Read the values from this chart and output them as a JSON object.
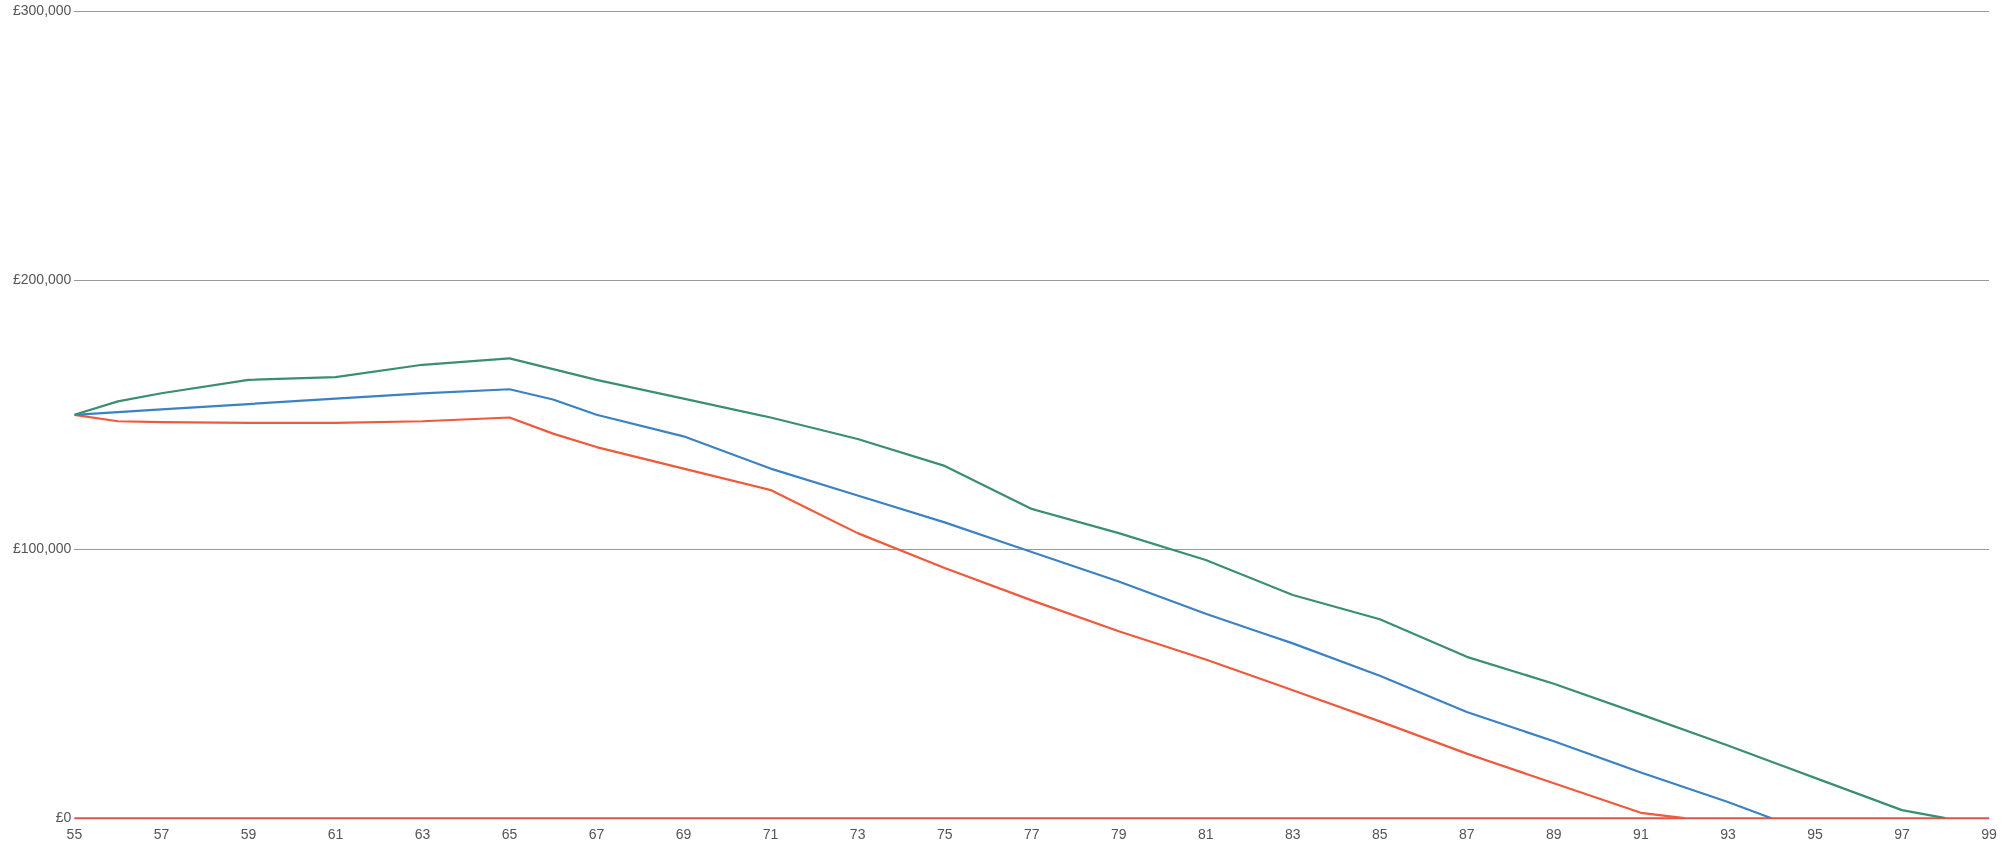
{
  "chart_data": {
    "type": "line",
    "x": [
      55,
      56,
      57,
      59,
      61,
      63,
      65,
      66,
      67,
      69,
      71,
      73,
      75,
      77,
      79,
      81,
      83,
      85,
      87,
      89,
      91,
      92,
      93,
      94,
      95,
      97,
      98
    ],
    "series": [
      {
        "color": "#3a8f6e",
        "values": [
          150000,
          155000,
          158000,
          163000,
          164000,
          168600,
          171000,
          167000,
          163000,
          156000,
          149000,
          141000,
          131000,
          115000,
          106000,
          96000,
          83000,
          74000,
          60000,
          50000,
          38600,
          null,
          27000,
          null,
          15000,
          3000,
          0
        ]
      },
      {
        "color": "#3b82c4",
        "values": [
          150000,
          151000,
          152000,
          154000,
          156000,
          158000,
          159500,
          155700,
          150000,
          142000,
          130000,
          120000,
          110000,
          99000,
          88000,
          76000,
          65000,
          53000,
          39500,
          28600,
          17000,
          null,
          6000,
          0,
          null,
          null,
          null
        ]
      },
      {
        "color": "#ef5a3c",
        "values": [
          150000,
          147600,
          147300,
          147000,
          147000,
          147600,
          149000,
          143000,
          138000,
          130000,
          122000,
          106000,
          93000,
          81000,
          69500,
          59000,
          47600,
          36000,
          24000,
          13000,
          2000,
          0,
          null,
          null,
          null,
          null,
          null
        ]
      }
    ],
    "xlim": [
      55,
      99
    ],
    "xticks": [
      55,
      57,
      59,
      61,
      63,
      65,
      67,
      69,
      71,
      73,
      75,
      77,
      79,
      81,
      83,
      85,
      87,
      89,
      91,
      93,
      95,
      97,
      99
    ],
    "ylim": [
      0,
      300000
    ],
    "yticks": [
      {
        "value": 0,
        "label": "£0"
      },
      {
        "value": 100000,
        "label": "£100,000"
      },
      {
        "value": 200000,
        "label": "£200,000"
      },
      {
        "value": 300000,
        "label": "£300,000"
      }
    ],
    "ref_lines": [
      {
        "axis": "y",
        "value": 0,
        "color": "#e0554a"
      }
    ],
    "grid": "y",
    "marker": "none",
    "line_style": "solid"
  }
}
